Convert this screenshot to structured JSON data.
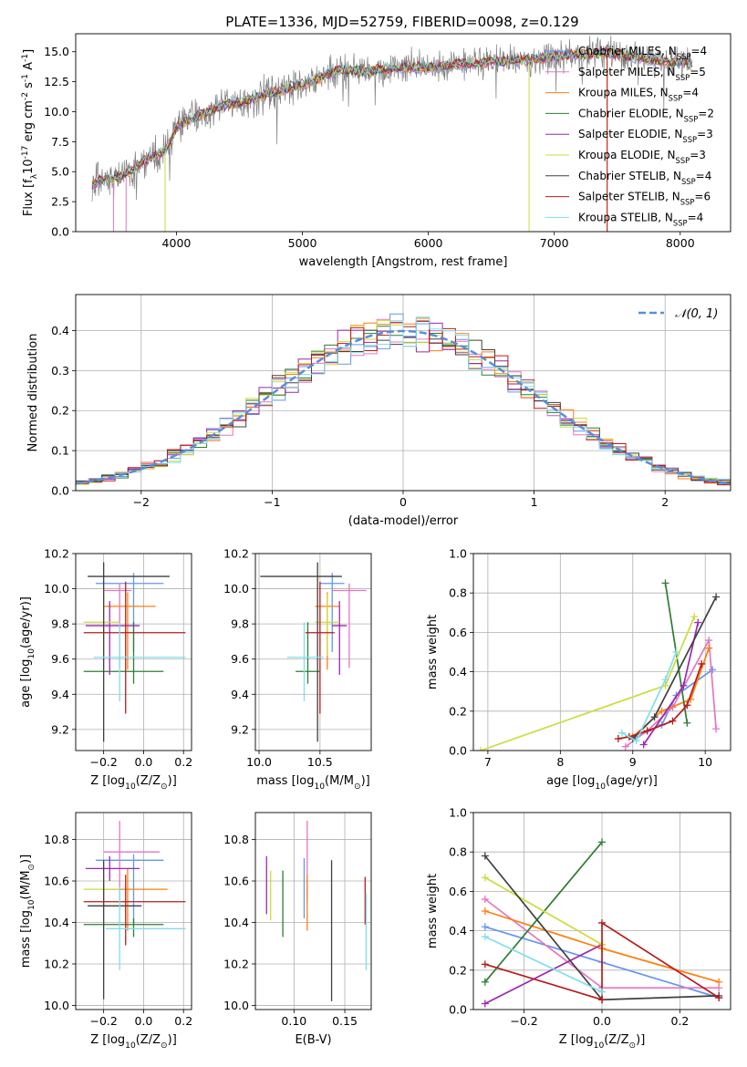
{
  "figure": {
    "title": "PLATE=1336, MJD=52759, FIBERID=0098, z=0.129"
  },
  "colors": {
    "Chabrier MILES": "#6495ed",
    "Salpeter MILES": "#e377c2",
    "Kroupa MILES": "#ff7f0e",
    "Chabrier ELODIE": "#2e7d32",
    "Salpeter ELODIE": "#9c27b0",
    "Kroupa ELODIE": "#cddc39",
    "Chabrier STELIB": "#404040",
    "Salpeter STELIB": "#b71c1c",
    "Kroupa STELIB": "#80deea"
  },
  "chart_data": [
    {
      "id": "spectrum",
      "type": "line",
      "xlabel": "wavelength [Angstrom, rest frame]",
      "ylabel": "Flux [f$_\\lambda$10$^{-17}$ erg cm$^{-2}$ s$^{-1}$ A$^{-1}$]",
      "xlim": [
        3200,
        8400
      ],
      "ylim": [
        0,
        16.5
      ],
      "xticks": [
        4000,
        5000,
        6000,
        7000,
        8000
      ],
      "yticks": [
        0.0,
        2.5,
        5.0,
        7.5,
        10.0,
        12.5,
        15.0
      ],
      "legend": "top-right",
      "series": [
        {
          "name": "Chabrier MILES, N$_{SSP}$=4",
          "color_key": "Chabrier MILES"
        },
        {
          "name": "Salpeter MILES, N$_{SSP}$=5",
          "color_key": "Salpeter MILES"
        },
        {
          "name": "Kroupa MILES, N$_{SSP}$=4",
          "color_key": "Kroupa MILES"
        },
        {
          "name": "Chabrier ELODIE, N$_{SSP}$=2",
          "color_key": "Chabrier ELODIE"
        },
        {
          "name": "Salpeter ELODIE, N$_{SSP}$=3",
          "color_key": "Salpeter ELODIE"
        },
        {
          "name": "Kroupa ELODIE, N$_{SSP}$=3",
          "color_key": "Kroupa ELODIE"
        },
        {
          "name": "Chabrier STELIB, N$_{SSP}$=4",
          "color_key": "Chabrier STELIB"
        },
        {
          "name": "Salpeter STELIB, N$_{SSP}$=6",
          "color_key": "Salpeter STELIB"
        },
        {
          "name": "Kroupa STELIB, N$_{SSP}$=4",
          "color_key": "Kroupa STELIB"
        }
      ],
      "data_x": [
        3330,
        3400,
        3500,
        3600,
        3700,
        3800,
        3900,
        3950,
        4000,
        4100,
        4200,
        4300,
        4400,
        4500,
        4600,
        4700,
        4800,
        4900,
        5000,
        5100,
        5200,
        5300,
        5400,
        5500,
        5600,
        5700,
        5800,
        5900,
        6000,
        6100,
        6200,
        6300,
        6400,
        6500,
        6600,
        6700,
        6800,
        6900,
        7000,
        7100,
        7200,
        7300,
        7400,
        7500,
        7600,
        7700,
        7800,
        7900,
        8000,
        8100
      ],
      "data_y": [
        3.9,
        4.3,
        4.4,
        4.8,
        5.6,
        6.2,
        6.6,
        7.6,
        8.7,
        9.3,
        9.8,
        10.2,
        10.6,
        10.8,
        11.0,
        11.4,
        11.7,
        12.0,
        12.3,
        12.5,
        13.2,
        13.5,
        13.4,
        13.3,
        13.5,
        13.6,
        13.7,
        13.7,
        13.7,
        13.8,
        13.9,
        14.0,
        14.0,
        14.2,
        14.2,
        14.3,
        14.3,
        14.4,
        14.6,
        14.7,
        14.8,
        14.8,
        14.9,
        14.8,
        14.6,
        14.5,
        14.3,
        14.1,
        14.2,
        13.9
      ]
    },
    {
      "id": "residuals",
      "type": "histogram",
      "xlabel": "(data-model)/error",
      "ylabel": "Normed distribution",
      "xlim": [
        -2.5,
        2.5
      ],
      "ylim": [
        0,
        0.49
      ],
      "xticks": [
        -2,
        -1,
        0,
        1,
        2
      ],
      "yticks": [
        0.0,
        0.1,
        0.2,
        0.3,
        0.4
      ],
      "grid": true,
      "legend": "top-right",
      "curve_label": "$\\mathcal{N}(0, 1)$",
      "bin_width": 0.1,
      "bin_start": -2.5
    },
    {
      "id": "age_vs_Z",
      "type": "errorbar",
      "xlabel": "Z [log$_{10}$(Z/Z$_\\odot$)]",
      "ylabel": "age  [log$_{10}$(age/yr)]",
      "xlim": [
        -0.34,
        0.24
      ],
      "ylim": [
        9.08,
        10.2
      ],
      "xticks": [
        -0.2,
        0.0,
        0.2
      ],
      "yticks": [
        9.2,
        9.4,
        9.6,
        9.8,
        10.0,
        10.2
      ],
      "grid": true,
      "points": [
        {
          "key": "Chabrier MILES",
          "x": -0.05,
          "xerr": [
            0.19,
            0.15
          ],
          "y": 10.03,
          "yerr": [
            0.39,
            0.06
          ]
        },
        {
          "key": "Salpeter MILES",
          "x": -0.12,
          "xerr": [
            0.08,
            0.06
          ],
          "y": 9.99,
          "yerr": [
            0.44,
            0.04
          ]
        },
        {
          "key": "Kroupa MILES",
          "x": -0.08,
          "xerr": [
            0.12,
            0.14
          ],
          "y": 9.9,
          "yerr": [
            0.36,
            0.08
          ]
        },
        {
          "key": "Chabrier ELODIE",
          "x": -0.05,
          "xerr": [
            0.25,
            0.15
          ],
          "y": 9.53,
          "yerr": [
            0.07,
            0.28
          ]
        },
        {
          "key": "Salpeter ELODIE",
          "x": -0.17,
          "xerr": [
            0.12,
            0.15
          ],
          "y": 9.79,
          "yerr": [
            0.28,
            0.14
          ]
        },
        {
          "key": "Kroupa ELODIE",
          "x": -0.2,
          "xerr": [
            0.1,
            0.08
          ],
          "y": 9.81,
          "yerr": [
            0.19,
            0.16
          ]
        },
        {
          "key": "Chabrier STELIB",
          "x": -0.2,
          "xerr": [
            0.08,
            0.33
          ],
          "y": 10.07,
          "yerr": [
            0.94,
            0.08
          ]
        },
        {
          "key": "Salpeter STELIB",
          "x": -0.09,
          "xerr": [
            0.21,
            0.3
          ],
          "y": 9.75,
          "yerr": [
            0.46,
            0.29
          ]
        },
        {
          "key": "Kroupa STELIB",
          "x": -0.12,
          "xerr": [
            0.13,
            0.33
          ],
          "y": 9.61,
          "yerr": [
            0.25,
            0.2
          ]
        }
      ]
    },
    {
      "id": "age_vs_mass",
      "type": "errorbar",
      "xlabel": "mass [log$_{10}$(M/M$_\\odot$)]",
      "ylabel": "",
      "xlim": [
        9.97,
        10.92
      ],
      "ylim": [
        9.08,
        10.2
      ],
      "xticks": [
        10.0,
        10.5
      ],
      "yticks": [
        9.2,
        9.4,
        9.6,
        9.8,
        10.0,
        10.2
      ],
      "grid": true,
      "points": [
        {
          "key": "Chabrier MILES",
          "x": 10.6,
          "xerr": [
            0.1,
            0.1
          ],
          "y": 10.03,
          "yerr": [
            0.39,
            0.06
          ]
        },
        {
          "key": "Salpeter MILES",
          "x": 10.74,
          "xerr": [
            0.14,
            0.14
          ],
          "y": 9.99,
          "yerr": [
            0.44,
            0.04
          ]
        },
        {
          "key": "Kroupa MILES",
          "x": 10.56,
          "xerr": [
            0.1,
            0.1
          ],
          "y": 9.9,
          "yerr": [
            0.36,
            0.08
          ]
        },
        {
          "key": "Chabrier ELODIE",
          "x": 10.4,
          "xerr": [
            0.1,
            0.1
          ],
          "y": 9.53,
          "yerr": [
            0.07,
            0.28
          ]
        },
        {
          "key": "Salpeter ELODIE",
          "x": 10.66,
          "xerr": [
            0.06,
            0.06
          ],
          "y": 9.79,
          "yerr": [
            0.28,
            0.14
          ]
        },
        {
          "key": "Kroupa ELODIE",
          "x": 10.56,
          "xerr": [
            0.1,
            0.1
          ],
          "y": 9.81,
          "yerr": [
            0.19,
            0.16
          ]
        },
        {
          "key": "Chabrier STELIB",
          "x": 10.48,
          "xerr": [
            0.47,
            0.2
          ],
          "y": 10.07,
          "yerr": [
            0.94,
            0.08
          ]
        },
        {
          "key": "Salpeter STELIB",
          "x": 10.5,
          "xerr": [
            0.12,
            0.12
          ],
          "y": 9.75,
          "yerr": [
            0.46,
            0.29
          ]
        },
        {
          "key": "Kroupa STELIB",
          "x": 10.37,
          "xerr": [
            0.14,
            0.16
          ],
          "y": 9.61,
          "yerr": [
            0.25,
            0.2
          ]
        }
      ]
    },
    {
      "id": "massweight_vs_age",
      "type": "line",
      "xlabel": "age  [log$_{10}$(age/yr)]",
      "ylabel": "mass weight",
      "xlim": [
        6.8,
        10.35
      ],
      "ylim": [
        0,
        1.0
      ],
      "xticks": [
        7,
        8,
        9,
        10
      ],
      "yticks": [
        0.0,
        0.2,
        0.4,
        0.6,
        0.8,
        1.0
      ],
      "grid": true,
      "series": [
        {
          "key": "Chabrier MILES",
          "x": [
            9.0,
            9.4,
            9.6,
            10.1
          ],
          "y": [
            0.06,
            0.13,
            0.28,
            0.41
          ]
        },
        {
          "key": "Salpeter MILES",
          "x": [
            8.9,
            9.2,
            9.55,
            10.05,
            10.15
          ],
          "y": [
            0.02,
            0.1,
            0.22,
            0.56,
            0.11
          ]
        },
        {
          "key": "Kroupa MILES",
          "x": [
            9.0,
            9.4,
            9.8,
            10.05
          ],
          "y": [
            0.07,
            0.2,
            0.26,
            0.52
          ]
        },
        {
          "key": "Chabrier ELODIE",
          "x": [
            9.45,
            9.75
          ],
          "y": [
            0.85,
            0.14
          ]
        },
        {
          "key": "Salpeter ELODIE",
          "x": [
            9.15,
            9.7,
            9.9
          ],
          "y": [
            0.03,
            0.33,
            0.65
          ]
        },
        {
          "key": "Kroupa ELODIE",
          "x": [
            6.9,
            9.45,
            9.85
          ],
          "y": [
            0.0,
            0.33,
            0.68
          ]
        },
        {
          "key": "Chabrier STELIB",
          "x": [
            9.0,
            9.3,
            10.15
          ],
          "y": [
            0.06,
            0.17,
            0.78
          ]
        },
        {
          "key": "Salpeter STELIB",
          "x": [
            8.8,
            8.95,
            9.2,
            9.55,
            9.75,
            9.95
          ],
          "y": [
            0.06,
            0.07,
            0.1,
            0.15,
            0.23,
            0.44
          ]
        },
        {
          "key": "Kroupa STELIB",
          "x": [
            8.85,
            9.05,
            9.45,
            9.6
          ],
          "y": [
            0.09,
            0.05,
            0.36,
            0.5
          ]
        }
      ]
    },
    {
      "id": "mass_vs_Z",
      "type": "errorbar",
      "xlabel": "Z [log$_{10}$(Z/Z$_\\odot$)]",
      "ylabel": "mass [log$_{10}$(M/M$_\\odot$)]",
      "xlim": [
        -0.34,
        0.24
      ],
      "ylim": [
        9.98,
        10.93
      ],
      "xticks": [
        -0.2,
        0.0,
        0.2
      ],
      "yticks": [
        10.0,
        10.2,
        10.4,
        10.6,
        10.8
      ],
      "grid": true,
      "points": [
        {
          "key": "Chabrier MILES",
          "x": -0.05,
          "xerr": [
            0.19,
            0.15
          ],
          "y": 10.7,
          "yerr": [
            0.3,
            0.03
          ]
        },
        {
          "key": "Salpeter MILES",
          "x": -0.12,
          "xerr": [
            0.08,
            0.2
          ],
          "y": 10.74,
          "yerr": [
            0.24,
            0.15
          ]
        },
        {
          "key": "Kroupa MILES",
          "x": -0.08,
          "xerr": [
            0.12,
            0.2
          ],
          "y": 10.56,
          "yerr": [
            0.2,
            0.1
          ]
        },
        {
          "key": "Chabrier ELODIE",
          "x": -0.05,
          "xerr": [
            0.25,
            0.15
          ],
          "y": 10.39,
          "yerr": [
            0.06,
            0.03
          ]
        },
        {
          "key": "Salpeter ELODIE",
          "x": -0.17,
          "xerr": [
            0.12,
            0.15
          ],
          "y": 10.66,
          "yerr": [
            0.06,
            0.06
          ]
        },
        {
          "key": "Kroupa ELODIE",
          "x": -0.2,
          "xerr": [
            0.1,
            0.08
          ],
          "y": 10.56,
          "yerr": [
            0.06,
            0.06
          ]
        },
        {
          "key": "Chabrier STELIB",
          "x": -0.2,
          "xerr": [
            0.08,
            0.19
          ],
          "y": 10.48,
          "yerr": [
            0.45,
            0.22
          ]
        },
        {
          "key": "Salpeter STELIB",
          "x": -0.09,
          "xerr": [
            0.21,
            0.3
          ],
          "y": 10.5,
          "yerr": [
            0.21,
            0.13
          ]
        },
        {
          "key": "Kroupa STELIB",
          "x": -0.12,
          "xerr": [
            0.07,
            0.33
          ],
          "y": 10.37,
          "yerr": [
            0.2,
            0.2
          ]
        }
      ]
    },
    {
      "id": "mass_vs_ebv",
      "type": "errorbar",
      "xlabel": "E(B-V)",
      "ylabel": "",
      "xlim": [
        0.062,
        0.176
      ],
      "ylim": [
        9.98,
        10.93
      ],
      "xticks": [
        0.1,
        0.15
      ],
      "yticks": [
        10.0,
        10.2,
        10.4,
        10.6,
        10.8
      ],
      "grid": true,
      "points": [
        {
          "key": "Chabrier MILES",
          "x": 0.11,
          "xerr": [
            0,
            0
          ],
          "y": 10.58,
          "yerr": [
            0.16,
            0.13
          ]
        },
        {
          "key": "Salpeter MILES",
          "x": 0.113,
          "xerr": [
            0,
            0
          ],
          "y": 10.74,
          "yerr": [
            0.24,
            0.15
          ]
        },
        {
          "key": "Kroupa MILES",
          "x": 0.113,
          "xerr": [
            0,
            0
          ],
          "y": 10.5,
          "yerr": [
            0.14,
            0.13
          ]
        },
        {
          "key": "Chabrier ELODIE",
          "x": 0.089,
          "xerr": [
            0,
            0
          ],
          "y": 10.49,
          "yerr": [
            0.16,
            0.16
          ]
        },
        {
          "key": "Salpeter ELODIE",
          "x": 0.073,
          "xerr": [
            0,
            0
          ],
          "y": 10.58,
          "yerr": [
            0.14,
            0.14
          ]
        },
        {
          "key": "Kroupa ELODIE",
          "x": 0.077,
          "xerr": [
            0,
            0
          ],
          "y": 10.53,
          "yerr": [
            0.12,
            0.12
          ]
        },
        {
          "key": "Chabrier STELIB",
          "x": 0.137,
          "xerr": [
            0,
            0
          ],
          "y": 10.36,
          "yerr": [
            0.34,
            0.34
          ]
        },
        {
          "key": "Salpeter STELIB",
          "x": 0.17,
          "xerr": [
            0,
            0
          ],
          "y": 10.5,
          "yerr": [
            0.11,
            0.12
          ]
        },
        {
          "key": "Kroupa STELIB",
          "x": 0.171,
          "xerr": [
            0,
            0
          ],
          "y": 10.37,
          "yerr": [
            0.2,
            0.17
          ]
        }
      ]
    },
    {
      "id": "massweight_vs_Z",
      "type": "line",
      "xlabel": "Z [log$_{10}$(Z/Z$_\\odot$)]",
      "ylabel": "mass weight",
      "xlim": [
        -0.33,
        0.33
      ],
      "ylim": [
        0,
        1.0
      ],
      "xticks": [
        -0.2,
        0.0,
        0.2
      ],
      "yticks": [
        0.0,
        0.2,
        0.4,
        0.6,
        0.8,
        1.0
      ],
      "grid": true,
      "series": [
        {
          "key": "Chabrier MILES",
          "x": [
            -0.3,
            0.0,
            0.3
          ],
          "y": [
            0.42,
            0.24,
            0.06
          ]
        },
        {
          "key": "Salpeter MILES",
          "x": [
            -0.3,
            0.0,
            0.3
          ],
          "y": [
            0.56,
            0.11,
            0.11
          ]
        },
        {
          "key": "Kroupa MILES",
          "x": [
            -0.3,
            0.0,
            0.3
          ],
          "y": [
            0.5,
            0.31,
            0.14
          ]
        },
        {
          "key": "Chabrier ELODIE",
          "x": [
            -0.3,
            0.0
          ],
          "y": [
            0.14,
            0.85
          ]
        },
        {
          "key": "Salpeter ELODIE",
          "x": [
            -0.3,
            0.0
          ],
          "y": [
            0.03,
            0.33
          ]
        },
        {
          "key": "Kroupa ELODIE",
          "x": [
            -0.3,
            0.0
          ],
          "y": [
            0.67,
            0.33
          ]
        },
        {
          "key": "Chabrier STELIB",
          "x": [
            -0.3,
            0.0,
            0.3
          ],
          "y": [
            0.78,
            0.05,
            0.07
          ]
        },
        {
          "key": "Salpeter STELIB",
          "x": [
            -0.3,
            0.0,
            0.0,
            0.3
          ],
          "y": [
            0.23,
            0.05,
            0.44,
            0.06
          ]
        },
        {
          "key": "Kroupa STELIB",
          "x": [
            -0.3,
            0.0
          ],
          "y": [
            0.37,
            0.09
          ]
        }
      ]
    }
  ]
}
